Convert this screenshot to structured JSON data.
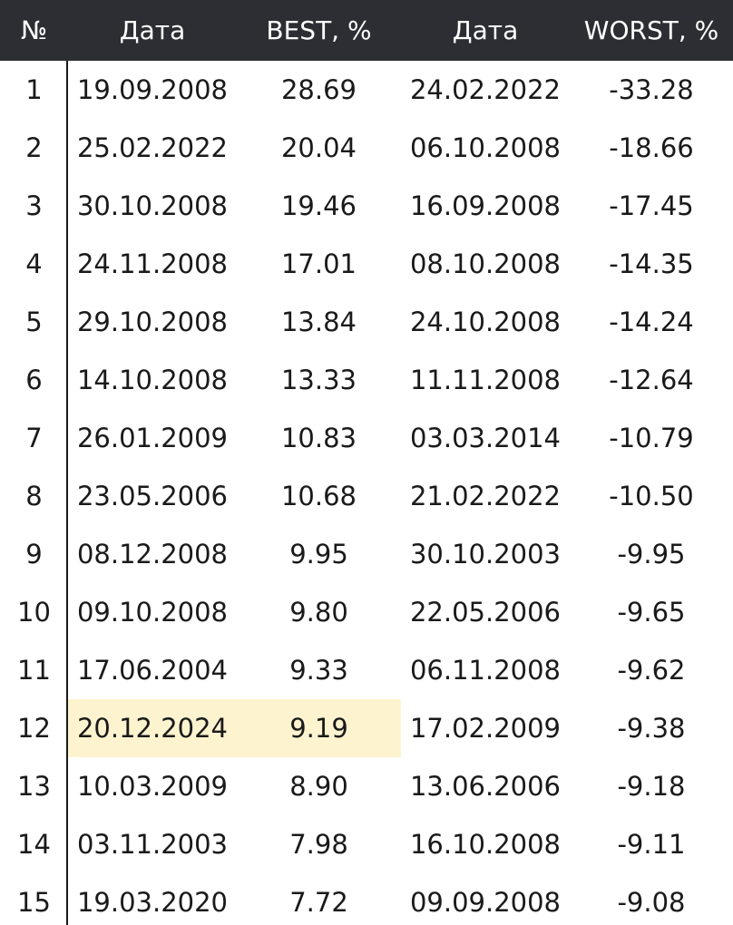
{
  "table": {
    "headers": {
      "num": "№",
      "date1": "Дата",
      "best": "BEST, %",
      "date2": "Дата",
      "worst": "WORST, %"
    },
    "rows": [
      {
        "num": "1",
        "date1": "19.09.2008",
        "best": "28.69",
        "date2": "24.02.2022",
        "worst": "-33.28"
      },
      {
        "num": "2",
        "date1": "25.02.2022",
        "best": "20.04",
        "date2": "06.10.2008",
        "worst": "-18.66"
      },
      {
        "num": "3",
        "date1": "30.10.2008",
        "best": "19.46",
        "date2": "16.09.2008",
        "worst": "-17.45"
      },
      {
        "num": "4",
        "date1": "24.11.2008",
        "best": "17.01",
        "date2": "08.10.2008",
        "worst": "-14.35"
      },
      {
        "num": "5",
        "date1": "29.10.2008",
        "best": "13.84",
        "date2": "24.10.2008",
        "worst": "-14.24"
      },
      {
        "num": "6",
        "date1": "14.10.2008",
        "best": "13.33",
        "date2": "11.11.2008",
        "worst": "-12.64"
      },
      {
        "num": "7",
        "date1": "26.01.2009",
        "best": "10.83",
        "date2": "03.03.2014",
        "worst": "-10.79"
      },
      {
        "num": "8",
        "date1": "23.05.2006",
        "best": "10.68",
        "date2": "21.02.2022",
        "worst": "-10.50"
      },
      {
        "num": "9",
        "date1": "08.12.2008",
        "best": "9.95",
        "date2": "30.10.2003",
        "worst": "-9.95"
      },
      {
        "num": "10",
        "date1": "09.10.2008",
        "best": "9.80",
        "date2": "22.05.2006",
        "worst": "-9.65"
      },
      {
        "num": "11",
        "date1": "17.06.2004",
        "best": "9.33",
        "date2": "06.11.2008",
        "worst": "-9.62"
      },
      {
        "num": "12",
        "date1": "20.12.2024",
        "best": "9.19",
        "date2": "17.02.2009",
        "worst": "-9.38"
      },
      {
        "num": "13",
        "date1": "10.03.2009",
        "best": "8.90",
        "date2": "13.06.2006",
        "worst": "-9.18"
      },
      {
        "num": "14",
        "date1": "03.11.2003",
        "best": "7.98",
        "date2": "16.10.2008",
        "worst": "-9.11"
      },
      {
        "num": "15",
        "date1": "19.03.2020",
        "best": "7.72",
        "date2": "09.09.2008",
        "worst": "-9.08"
      }
    ],
    "highlighted_row": "12",
    "colors": {
      "header_bg": "#2d2e33",
      "header_text": "#ffffff",
      "highlight_bg": "#fdf4cf",
      "text": "#1a1a1a"
    }
  }
}
